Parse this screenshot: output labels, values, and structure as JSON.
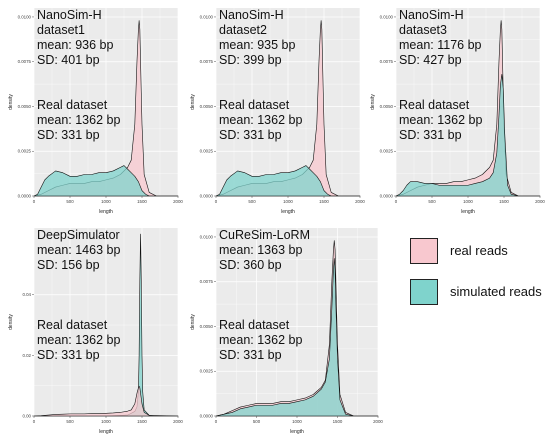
{
  "colors": {
    "real": "#F8C8CF",
    "simulated": "#7FD3CC",
    "panel_bg": "#EBEBEB",
    "grid": "#FFFFFF"
  },
  "legend": {
    "items": [
      {
        "label": "real reads",
        "color": "#F8C8CF"
      },
      {
        "label": "simulated reads",
        "color": "#7FD3CC"
      }
    ]
  },
  "chart_data": [
    {
      "type": "area",
      "ylabel": "density",
      "xlabel": "length",
      "xlim": [
        0,
        2000
      ],
      "ylim": [
        0,
        0.0105
      ],
      "xticks": [
        "0",
        "500",
        "1000",
        "1500",
        "2000"
      ],
      "yticks": [
        {
          "v": 0.0,
          "label": "0.0000"
        },
        {
          "v": 0.0025,
          "label": "0.0025"
        },
        {
          "v": 0.005,
          "label": "0.0050"
        },
        {
          "v": 0.0075,
          "label": "0.0075"
        },
        {
          "v": 0.01,
          "label": "0.0100"
        }
      ],
      "annotation_sim": [
        "NanoSim-H",
        "dataset1",
        "mean: 936 bp",
        "SD: 401 bp"
      ],
      "annotation_real": [
        "Real dataset",
        "mean: 1362 bp",
        "SD: 331 bp"
      ],
      "grid": true,
      "series": [
        {
          "name": "real reads",
          "x": [
            0,
            100,
            200,
            300,
            400,
            500,
            600,
            700,
            800,
            900,
            1000,
            1100,
            1200,
            1300,
            1350,
            1400,
            1430,
            1450,
            1460,
            1470,
            1480,
            1500,
            1530,
            1600,
            1700,
            1800,
            1900,
            2000
          ],
          "y": [
            0,
            0.0001,
            0.0003,
            0.0005,
            0.0006,
            0.0007,
            0.0007,
            0.0007,
            0.0008,
            0.0008,
            0.0009,
            0.001,
            0.0012,
            0.0016,
            0.002,
            0.004,
            0.0075,
            0.0093,
            0.0098,
            0.0093,
            0.0075,
            0.004,
            0.0012,
            0.0002,
            0,
            0,
            0,
            0
          ]
        },
        {
          "name": "simulated reads",
          "x": [
            0,
            50,
            100,
            150,
            200,
            300,
            400,
            500,
            600,
            700,
            800,
            900,
            1000,
            1100,
            1200,
            1250,
            1300,
            1350,
            1400,
            1450,
            1500,
            1550,
            1600,
            1700,
            1800,
            1900,
            2000
          ],
          "y": [
            0,
            0.0001,
            0.0005,
            0.0009,
            0.0011,
            0.0014,
            0.0013,
            0.0011,
            0.0011,
            0.0012,
            0.0012,
            0.0013,
            0.0013,
            0.0014,
            0.0016,
            0.0017,
            0.0015,
            0.0013,
            0.0011,
            0.0008,
            0.0003,
            0.0001,
            0,
            0,
            0,
            0,
            0
          ]
        }
      ]
    },
    {
      "type": "area",
      "ylabel": "density",
      "xlabel": "length",
      "xlim": [
        0,
        2000
      ],
      "ylim": [
        0,
        0.0105
      ],
      "xticks": [
        "0",
        "500",
        "1000",
        "1500",
        "2000"
      ],
      "yticks": [
        {
          "v": 0.0,
          "label": "0.0000"
        },
        {
          "v": 0.0025,
          "label": "0.0025"
        },
        {
          "v": 0.005,
          "label": "0.0050"
        },
        {
          "v": 0.0075,
          "label": "0.0075"
        },
        {
          "v": 0.01,
          "label": "0.0100"
        }
      ],
      "annotation_sim": [
        "NanoSim-H",
        "dataset2",
        "mean: 935 bp",
        "SD: 399 bp"
      ],
      "annotation_real": [
        "Real dataset",
        "mean: 1362 bp",
        "SD: 331 bp"
      ],
      "grid": true,
      "series": [
        {
          "name": "real reads",
          "x": [
            0,
            100,
            200,
            300,
            400,
            500,
            600,
            700,
            800,
            900,
            1000,
            1100,
            1200,
            1300,
            1350,
            1400,
            1430,
            1450,
            1460,
            1470,
            1480,
            1500,
            1530,
            1600,
            1700,
            1800,
            1900,
            2000
          ],
          "y": [
            0,
            0.0001,
            0.0003,
            0.0005,
            0.0006,
            0.0007,
            0.0007,
            0.0007,
            0.0008,
            0.0008,
            0.0009,
            0.001,
            0.0012,
            0.0016,
            0.002,
            0.004,
            0.0075,
            0.0093,
            0.0098,
            0.0093,
            0.0075,
            0.004,
            0.0012,
            0.0002,
            0,
            0,
            0,
            0
          ]
        },
        {
          "name": "simulated reads",
          "x": [
            0,
            50,
            100,
            150,
            200,
            300,
            400,
            500,
            600,
            700,
            800,
            900,
            1000,
            1100,
            1200,
            1250,
            1300,
            1350,
            1400,
            1450,
            1500,
            1550,
            1600,
            1700,
            1800,
            1900,
            2000
          ],
          "y": [
            0,
            0.0001,
            0.0005,
            0.0009,
            0.0011,
            0.0014,
            0.0013,
            0.0011,
            0.0011,
            0.0012,
            0.0012,
            0.0013,
            0.0013,
            0.0014,
            0.0016,
            0.0017,
            0.0015,
            0.0013,
            0.0011,
            0.0008,
            0.0003,
            0.0001,
            0,
            0,
            0,
            0,
            0
          ]
        }
      ]
    },
    {
      "type": "area",
      "ylabel": "density",
      "xlabel": "length",
      "xlim": [
        0,
        2000
      ],
      "ylim": [
        0,
        0.0105
      ],
      "xticks": [
        "0",
        "500",
        "1000",
        "1500",
        "2000"
      ],
      "yticks": [
        {
          "v": 0.0,
          "label": "0.0000"
        },
        {
          "v": 0.0025,
          "label": "0.0025"
        },
        {
          "v": 0.005,
          "label": "0.0050"
        },
        {
          "v": 0.0075,
          "label": "0.0075"
        },
        {
          "v": 0.01,
          "label": "0.0100"
        }
      ],
      "annotation_sim": [
        "NanoSim-H",
        "dataset3",
        "mean: 1176 bp",
        "SD: 427 bp"
      ],
      "annotation_real": [
        "Real dataset",
        "mean: 1362 bp",
        "SD: 331 bp"
      ],
      "grid": true,
      "series": [
        {
          "name": "real reads",
          "x": [
            0,
            100,
            200,
            300,
            400,
            500,
            600,
            700,
            800,
            900,
            1000,
            1100,
            1200,
            1300,
            1350,
            1400,
            1430,
            1450,
            1460,
            1470,
            1480,
            1500,
            1530,
            1600,
            1700,
            1800,
            1900,
            2000
          ],
          "y": [
            0,
            0.0001,
            0.0003,
            0.0005,
            0.0006,
            0.0007,
            0.0007,
            0.0007,
            0.0008,
            0.0008,
            0.0009,
            0.001,
            0.0012,
            0.0016,
            0.002,
            0.004,
            0.0075,
            0.0093,
            0.0098,
            0.0093,
            0.0075,
            0.004,
            0.0012,
            0.0002,
            0,
            0,
            0,
            0
          ]
        },
        {
          "name": "simulated reads",
          "x": [
            0,
            50,
            100,
            150,
            200,
            300,
            400,
            500,
            600,
            700,
            800,
            900,
            1000,
            1100,
            1200,
            1300,
            1350,
            1400,
            1430,
            1450,
            1470,
            1490,
            1510,
            1550,
            1600,
            1700,
            2000
          ],
          "y": [
            0,
            0.0001,
            0.0003,
            0.0006,
            0.0008,
            0.0008,
            0.0007,
            0.0007,
            0.0006,
            0.0006,
            0.0006,
            0.0006,
            0.0006,
            0.0007,
            0.0008,
            0.001,
            0.0013,
            0.0024,
            0.0045,
            0.0062,
            0.0068,
            0.006,
            0.0035,
            0.0006,
            0.0001,
            0,
            0
          ]
        }
      ]
    },
    {
      "type": "area",
      "ylabel": "density",
      "xlabel": "length",
      "xlim": [
        0,
        2000
      ],
      "ylim": [
        0,
        0.062
      ],
      "xticks": [
        "0",
        "500",
        "1000",
        "1500",
        "2000"
      ],
      "yticks": [
        {
          "v": 0.0,
          "label": "0.00"
        },
        {
          "v": 0.02,
          "label": "0.02"
        },
        {
          "v": 0.04,
          "label": "0.04"
        }
      ],
      "annotation_sim": [
        "DeepSimulator",
        "mean: 1463 bp",
        "SD: 156 bp"
      ],
      "annotation_real": [
        "Real dataset",
        "mean: 1362 bp",
        "SD: 331 bp"
      ],
      "grid": true,
      "series": [
        {
          "name": "simulated reads",
          "x": [
            0,
            1000,
            1300,
            1400,
            1430,
            1450,
            1460,
            1470,
            1480,
            1490,
            1500,
            1510,
            1530,
            1600,
            2000
          ],
          "y": [
            0,
            0,
            0.0003,
            0.0015,
            0.003,
            0.008,
            0.02,
            0.045,
            0.06,
            0.045,
            0.02,
            0.008,
            0.002,
            0.0002,
            0
          ]
        },
        {
          "name": "real reads",
          "x": [
            0,
            100,
            200,
            300,
            400,
            500,
            600,
            700,
            800,
            900,
            1000,
            1100,
            1200,
            1300,
            1350,
            1400,
            1430,
            1450,
            1460,
            1470,
            1480,
            1500,
            1530,
            1600,
            1700,
            1800,
            1900,
            2000
          ],
          "y": [
            0,
            0.0001,
            0.0003,
            0.0005,
            0.0006,
            0.0007,
            0.0007,
            0.0007,
            0.0008,
            0.0008,
            0.0009,
            0.001,
            0.0012,
            0.0016,
            0.002,
            0.004,
            0.0075,
            0.0093,
            0.0098,
            0.0093,
            0.0075,
            0.004,
            0.0012,
            0.0002,
            0,
            0,
            0,
            0
          ]
        }
      ]
    },
    {
      "type": "area",
      "ylabel": "density",
      "xlabel": "length",
      "xlim": [
        0,
        2000
      ],
      "ylim": [
        0,
        0.0105
      ],
      "xticks": [
        "0",
        "500",
        "1000",
        "1500",
        "2000"
      ],
      "yticks": [
        {
          "v": 0.0,
          "label": "0.0000"
        },
        {
          "v": 0.0025,
          "label": "0.0025"
        },
        {
          "v": 0.005,
          "label": "0.0050"
        },
        {
          "v": 0.0075,
          "label": "0.0075"
        },
        {
          "v": 0.01,
          "label": "0.0100"
        }
      ],
      "annotation_sim": [
        "CuReSim-LoRM",
        "mean: 1363 bp",
        "SD: 360 bp"
      ],
      "annotation_real": [
        "Real dataset",
        "mean: 1362 bp",
        "SD: 331 bp"
      ],
      "grid": true,
      "series": [
        {
          "name": "real reads",
          "x": [
            0,
            100,
            200,
            300,
            400,
            500,
            600,
            700,
            800,
            900,
            1000,
            1100,
            1200,
            1300,
            1350,
            1400,
            1430,
            1450,
            1460,
            1470,
            1480,
            1500,
            1530,
            1600,
            1700,
            1800,
            1900,
            2000
          ],
          "y": [
            0,
            0.0001,
            0.0003,
            0.0005,
            0.0006,
            0.0007,
            0.0007,
            0.0007,
            0.0008,
            0.0008,
            0.0009,
            0.001,
            0.0012,
            0.0016,
            0.002,
            0.004,
            0.0075,
            0.0093,
            0.0098,
            0.0093,
            0.0075,
            0.004,
            0.0012,
            0.0002,
            0,
            0,
            0,
            0
          ]
        },
        {
          "name": "simulated reads",
          "x": [
            0,
            100,
            200,
            300,
            400,
            500,
            600,
            700,
            800,
            900,
            1000,
            1100,
            1200,
            1300,
            1350,
            1400,
            1430,
            1450,
            1460,
            1470,
            1480,
            1500,
            1530,
            1600,
            1700,
            1800,
            1900,
            2000
          ],
          "y": [
            0,
            0.0001,
            0.0002,
            0.0004,
            0.0005,
            0.0006,
            0.0006,
            0.0006,
            0.0007,
            0.0007,
            0.0008,
            0.0009,
            0.0011,
            0.0015,
            0.0019,
            0.0032,
            0.006,
            0.0082,
            0.0088,
            0.0082,
            0.0062,
            0.0032,
            0.0009,
            0.0001,
            0,
            0,
            0,
            0
          ]
        }
      ]
    }
  ]
}
